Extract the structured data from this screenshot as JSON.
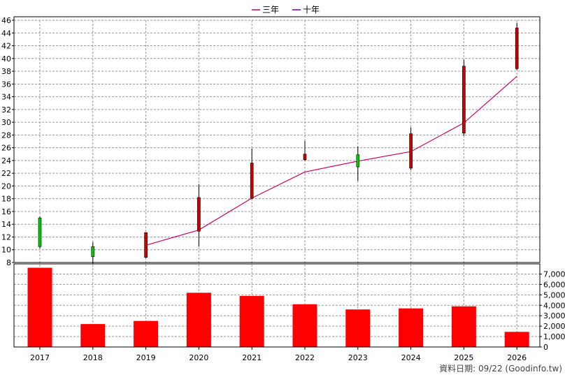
{
  "legend": [
    {
      "label": "三年",
      "color": "#cc0066"
    },
    {
      "label": "十年",
      "color": "#6600cc"
    }
  ],
  "footer_text": "資料日期: 09/22 (Goodinfo.tw)",
  "chart_data": [
    {
      "type": "candlestick",
      "ylim": [
        8,
        46
      ],
      "yticks": [
        8,
        10,
        12,
        14,
        16,
        18,
        20,
        22,
        24,
        26,
        28,
        30,
        32,
        34,
        36,
        38,
        40,
        42,
        44,
        46
      ],
      "grid": true,
      "categories": [
        "2017",
        "2018",
        "2019",
        "2020",
        "2021",
        "2022",
        "2023",
        "2024",
        "2025",
        "2026"
      ],
      "candles": [
        {
          "year": "2017",
          "open": 10.5,
          "close": 15.0,
          "high": 15.2,
          "low": 10.2,
          "color": "#00cc00"
        },
        {
          "year": "2018",
          "open": 8.9,
          "close": 10.5,
          "high": 11.2,
          "low": 7.8,
          "color": "#00cc00"
        },
        {
          "year": "2019",
          "open": 12.7,
          "close": 8.8,
          "high": 12.7,
          "low": 8.7,
          "color": "#cc0000"
        },
        {
          "year": "2020",
          "open": 18.2,
          "close": 12.9,
          "high": 20.3,
          "low": 10.5,
          "color": "#cc0000"
        },
        {
          "year": "2021",
          "open": 23.6,
          "close": 18.1,
          "high": 25.9,
          "low": 17.9,
          "color": "#cc0000"
        },
        {
          "year": "2022",
          "open": 25.0,
          "close": 24.1,
          "high": 27.1,
          "low": 24.0,
          "color": "#cc0000"
        },
        {
          "year": "2023",
          "open": 23.0,
          "close": 24.9,
          "high": 26.2,
          "low": 20.8,
          "color": "#00cc00"
        },
        {
          "year": "2024",
          "open": 28.2,
          "close": 22.8,
          "high": 29.2,
          "low": 22.5,
          "color": "#cc0000"
        },
        {
          "year": "2025",
          "open": 38.8,
          "close": 28.3,
          "high": 39.8,
          "low": 27.9,
          "color": "#cc0000"
        },
        {
          "year": "2026",
          "open": 44.8,
          "close": 38.4,
          "high": 45.6,
          "low": 38.2,
          "color": "#cc0000"
        }
      ],
      "series": [
        {
          "name": "三年",
          "color": "#cc0066",
          "points": [
            [
              "2019",
              10.7
            ],
            [
              "2020",
              13.1
            ],
            [
              "2021",
              18.1
            ],
            [
              "2022",
              22.2
            ],
            [
              "2023",
              23.9
            ],
            [
              "2024",
              25.4
            ],
            [
              "2025",
              29.9
            ],
            [
              "2026",
              37.2
            ]
          ]
        }
      ]
    },
    {
      "type": "bar",
      "categories": [
        "2017",
        "2018",
        "2019",
        "2020",
        "2021",
        "2022",
        "2023",
        "2024",
        "2025",
        "2026"
      ],
      "values": [
        7600,
        2200,
        2500,
        5200,
        4900,
        4100,
        3600,
        3700,
        3900,
        1450
      ],
      "ylim": [
        0,
        7500
      ],
      "yticks": [
        0,
        1000,
        2000,
        3000,
        4000,
        5000,
        6000,
        7000
      ],
      "yticklabels": [
        "0",
        "1,000",
        "2,000",
        "3,000",
        "4,000",
        "5,000",
        "6,000",
        "7,000"
      ],
      "bar_color": "#ff0000",
      "grid": true
    }
  ]
}
